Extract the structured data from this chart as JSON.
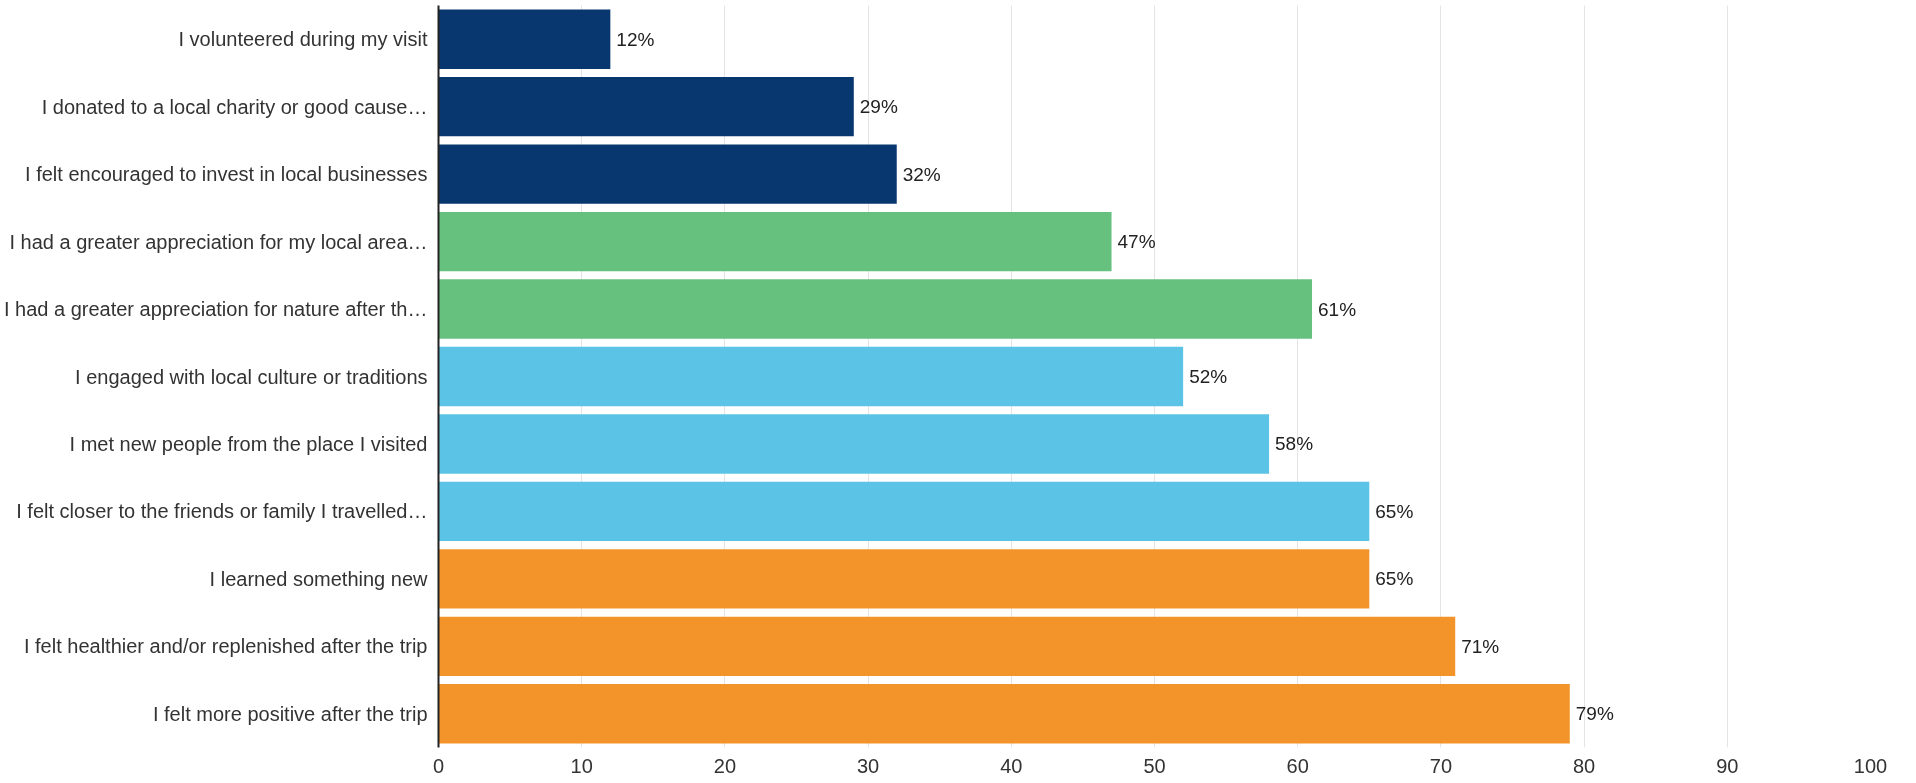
{
  "chart_data": {
    "type": "bar",
    "orientation": "horizontal",
    "categories": [
      "I volunteered during my visit",
      "I donated to a local charity or good cause…",
      "I felt encouraged to invest in local businesses",
      "I had a greater appreciation for my local area…",
      "I had a greater appreciation for nature after th…",
      "I engaged with local culture or traditions",
      "I met new people from the place I visited",
      "I felt closer to the friends or family I travelled…",
      "I learned something new",
      "I felt healthier and/or replenished after the trip",
      "I felt more positive after the trip"
    ],
    "values": [
      12,
      29,
      32,
      47,
      61,
      52,
      58,
      65,
      65,
      71,
      79
    ],
    "colors": [
      "#08366e",
      "#08366e",
      "#08366e",
      "#66c17f",
      "#66c17f",
      "#5bc4e6",
      "#5bc4e6",
      "#5bc4e6",
      "#f2942a",
      "#f2942a",
      "#f2942a"
    ],
    "value_labels": [
      "12%",
      "29%",
      "32%",
      "47%",
      "61%",
      "52%",
      "58%",
      "65%",
      "65%",
      "71%",
      "79%"
    ],
    "xlim": [
      0,
      100
    ],
    "xticks": [
      0,
      10,
      20,
      30,
      40,
      50,
      60,
      70,
      80,
      90,
      100
    ],
    "grid": "x"
  }
}
